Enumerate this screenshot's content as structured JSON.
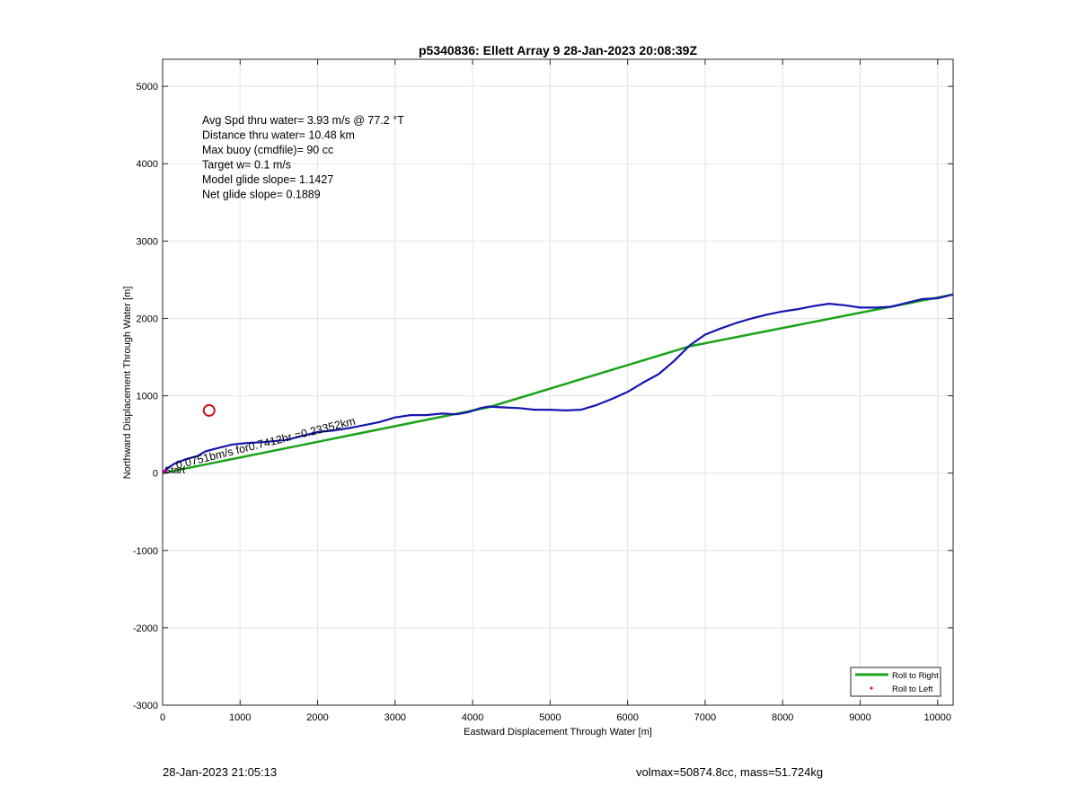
{
  "chart_data": {
    "type": "line",
    "title": "p5340836: Ellett Array 9 28-Jan-2023 20:08:39Z",
    "xlabel": "Eastward Displacement Through Water [m]",
    "ylabel": "Northward Displacement Through Water [m]",
    "xlim": [
      0,
      10200
    ],
    "ylim": [
      -3000,
      5350
    ],
    "xticks": [
      0,
      1000,
      2000,
      3000,
      4000,
      5000,
      6000,
      7000,
      8000,
      9000,
      10000
    ],
    "yticks": [
      -3000,
      -2000,
      -1000,
      0,
      1000,
      2000,
      3000,
      4000,
      5000
    ],
    "grid": true,
    "legend": {
      "position": "bottom-right",
      "entries": [
        {
          "label": "Roll to Right",
          "color": "#1aa31a",
          "style": "line"
        },
        {
          "label": "Roll to Left",
          "color": "#ff0000",
          "style": "dot"
        }
      ]
    },
    "annotations": [
      "Avg Spd thru water=  3.93 m/s @  77.2 °T",
      "Distance thru water= 10.48 km",
      "Max buoy (cmdfile)= 90 cc",
      "Target w= 0.1 m/s",
      "Model glide slope= 1.1427",
      "Net glide slope= 0.1889"
    ],
    "current_label": "0.0751bm/s for0.7412hr =0.23352km",
    "start_label": "Start",
    "series": [
      {
        "name": "Roll to Right",
        "color": "#1aa31a",
        "points": [
          [
            0,
            0
          ],
          [
            4200,
            850
          ],
          [
            6800,
            1640
          ],
          [
            10200,
            2310
          ]
        ]
      },
      {
        "color": "#1515b0",
        "points": [
          [
            0,
            0
          ],
          [
            60,
            60
          ],
          [
            150,
            120
          ],
          [
            300,
            180
          ],
          [
            450,
            220
          ],
          [
            550,
            280
          ],
          [
            700,
            320
          ],
          [
            900,
            370
          ],
          [
            1100,
            390
          ],
          [
            1300,
            400
          ],
          [
            1600,
            430
          ],
          [
            1800,
            480
          ],
          [
            2000,
            530
          ],
          [
            2200,
            550
          ],
          [
            2400,
            580
          ],
          [
            2600,
            620
          ],
          [
            2800,
            660
          ],
          [
            3000,
            720
          ],
          [
            3200,
            750
          ],
          [
            3400,
            750
          ],
          [
            3600,
            770
          ],
          [
            3800,
            760
          ],
          [
            3950,
            790
          ],
          [
            4100,
            840
          ],
          [
            4200,
            860
          ],
          [
            4400,
            850
          ],
          [
            4600,
            840
          ],
          [
            4800,
            820
          ],
          [
            5000,
            820
          ],
          [
            5200,
            810
          ],
          [
            5400,
            820
          ],
          [
            5600,
            880
          ],
          [
            5800,
            960
          ],
          [
            6000,
            1050
          ],
          [
            6200,
            1170
          ],
          [
            6400,
            1280
          ],
          [
            6600,
            1450
          ],
          [
            6800,
            1650
          ],
          [
            7000,
            1790
          ],
          [
            7200,
            1870
          ],
          [
            7400,
            1940
          ],
          [
            7600,
            2000
          ],
          [
            7800,
            2050
          ],
          [
            8000,
            2090
          ],
          [
            8200,
            2120
          ],
          [
            8400,
            2160
          ],
          [
            8600,
            2190
          ],
          [
            8800,
            2170
          ],
          [
            9000,
            2140
          ],
          [
            9200,
            2140
          ],
          [
            9400,
            2150
          ],
          [
            9600,
            2200
          ],
          [
            9800,
            2250
          ],
          [
            10000,
            2260
          ],
          [
            10200,
            2310
          ]
        ]
      }
    ],
    "markers": [
      {
        "x": 600,
        "y": 810,
        "color": "#cc1111",
        "shape": "circle"
      },
      {
        "x": 30,
        "y": 20,
        "color": "#cc00cc",
        "shape": "dot"
      }
    ]
  },
  "footer": {
    "date": "28-Jan-2023 21:05:13",
    "vol_mass": "volmax=50874.8cc, mass=51.724kg"
  }
}
